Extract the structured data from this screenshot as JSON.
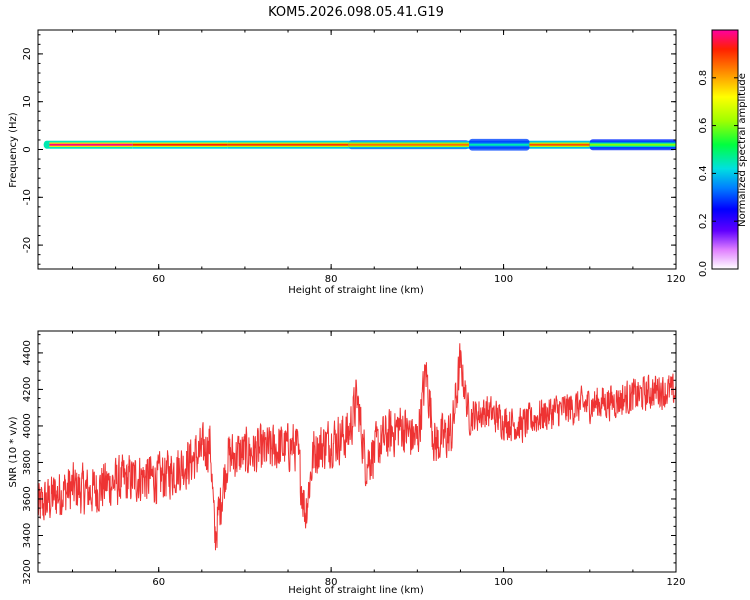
{
  "title": "KOM5.2026.098.05.41.G19",
  "colors": {
    "snr_line": "#ee3333",
    "axis": "#000000"
  },
  "chart_data": [
    {
      "type": "heatmap",
      "xlabel": "Height of straight line (km)",
      "ylabel": "Frequency (Hz)",
      "xlim": [
        46,
        120
      ],
      "ylim": [
        -25,
        25
      ],
      "xticks": [
        "60",
        "80",
        "100",
        "120"
      ],
      "yticks": [
        "20",
        "10",
        "0",
        "-10",
        "-20"
      ],
      "colorbar": {
        "label": "Normalized spectral amplitude",
        "range": [
          0,
          1
        ],
        "ticks": [
          "0.0",
          "0.2",
          "0.4",
          "0.6",
          "0.8"
        ]
      },
      "ridge_frequency_hz": 1.0,
      "segments": [
        {
          "x": [
            47,
            57
          ],
          "peak": 0.98,
          "halo": 0.15
        },
        {
          "x": [
            57,
            68
          ],
          "peak": 0.92,
          "halo": 0.25
        },
        {
          "x": [
            68,
            82
          ],
          "peak": 0.9,
          "halo": 0.15
        },
        {
          "x": [
            82,
            96
          ],
          "peak": 0.85,
          "halo": 0.35
        },
        {
          "x": [
            96,
            103
          ],
          "peak": 0.45,
          "halo": 0.55
        },
        {
          "x": [
            103,
            110
          ],
          "peak": 0.88,
          "halo": 0.2
        },
        {
          "x": [
            110,
            120
          ],
          "peak": 0.6,
          "halo": 0.5
        }
      ]
    },
    {
      "type": "line",
      "xlabel": "Height of straight line (km)",
      "ylabel": "SNR (10 * v/v)",
      "xlim": [
        46,
        120
      ],
      "ylim": [
        3200,
        4520
      ],
      "xticks": [
        "60",
        "80",
        "100",
        "120"
      ],
      "yticks": [
        "4400",
        "4200",
        "4000",
        "3800",
        "3600",
        "3400",
        "3200"
      ],
      "series": [
        {
          "x": [
            46,
            48,
            50,
            52,
            54,
            56,
            58,
            60,
            62,
            64,
            66,
            66.5,
            68,
            70,
            72,
            74,
            76,
            77,
            78,
            80,
            82,
            83,
            84,
            86,
            88,
            90,
            91,
            92,
            94,
            95,
            96,
            98,
            100,
            102,
            104,
            106,
            108,
            110,
            112,
            114,
            116,
            118,
            120
          ],
          "values": [
            3550,
            3620,
            3660,
            3640,
            3680,
            3700,
            3720,
            3710,
            3760,
            3820,
            3900,
            3380,
            3830,
            3850,
            3860,
            3880,
            3890,
            3520,
            3860,
            3920,
            3950,
            4150,
            3800,
            3920,
            4000,
            3920,
            4300,
            3900,
            3960,
            4350,
            4050,
            4080,
            4030,
            4000,
            4050,
            4080,
            4100,
            4120,
            4130,
            4150,
            4170,
            4200,
            4180
          ]
        }
      ]
    }
  ]
}
